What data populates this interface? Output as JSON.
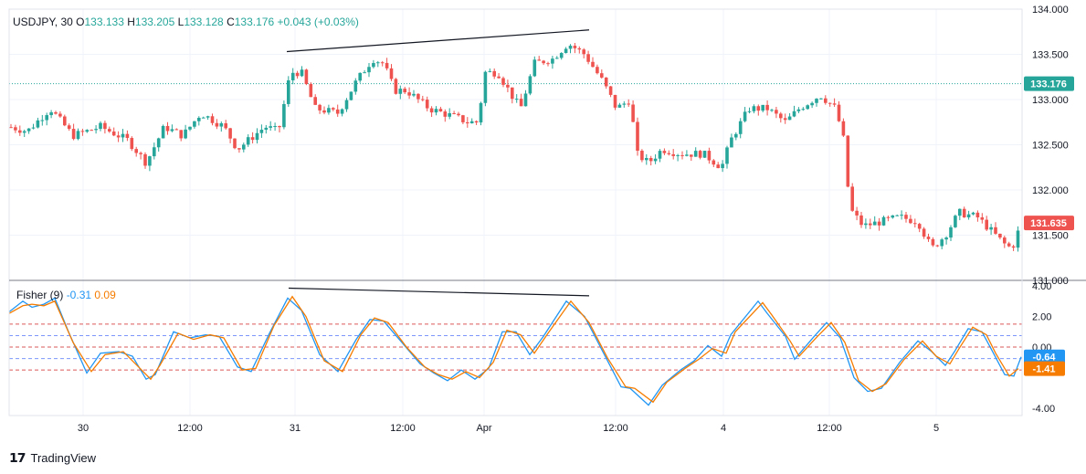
{
  "symbol": "USDJPY, 30",
  "ohlc": {
    "o_label": "O",
    "o": "133.133",
    "h_label": "H",
    "h": "133.205",
    "l_label": "L",
    "l": "133.128",
    "c_label": "C",
    "c": "133.176",
    "change": "+0.043 (+0.03%)"
  },
  "indicator": {
    "name": "Fisher (9)",
    "fisher_value": "-0.31",
    "trigger_value": "0.09"
  },
  "brand": "TradingView",
  "colors": {
    "up": "#26a69a",
    "down": "#ef5350",
    "fisher": "#2196f3",
    "trigger": "#f57c00",
    "level": "#d32f2f",
    "grid": "#f0f3fa"
  },
  "chart_data": [
    {
      "type": "candlestick",
      "ylim": [
        131.0,
        134.0
      ],
      "y_ticks": [
        "134.000",
        "133.500",
        "133.000",
        "132.500",
        "132.000",
        "131.500",
        "131.000"
      ],
      "x_ticks": [
        "30",
        "12:00",
        "31",
        "12:00",
        "Apr",
        "12:00",
        "4",
        "12:00",
        "5"
      ],
      "price_labels": [
        {
          "text": "133.176",
          "value": 133.176,
          "color": "#26a69a"
        },
        {
          "text": "131.635",
          "value": 131.635,
          "color": "#ef5350"
        }
      ],
      "trendline": [
        [
          314,
          133.53
        ],
        [
          645,
          133.77
        ]
      ],
      "anchors": [
        [
          10,
          132.7
        ],
        [
          30,
          132.65
        ],
        [
          55,
          132.9
        ],
        [
          80,
          132.6
        ],
        [
          110,
          132.7
        ],
        [
          140,
          132.55
        ],
        [
          160,
          132.3
        ],
        [
          180,
          132.7
        ],
        [
          200,
          132.6
        ],
        [
          220,
          132.85
        ],
        [
          245,
          132.7
        ],
        [
          260,
          132.45
        ],
        [
          290,
          132.7
        ],
        [
          305,
          132.65
        ],
        [
          318,
          133.3
        ],
        [
          330,
          133.3
        ],
        [
          345,
          132.9
        ],
        [
          370,
          132.85
        ],
        [
          390,
          133.2
        ],
        [
          408,
          133.45
        ],
        [
          420,
          133.4
        ],
        [
          432,
          133.1
        ],
        [
          445,
          133.1
        ],
        [
          470,
          132.9
        ],
        [
          485,
          132.85
        ],
        [
          500,
          132.8
        ],
        [
          512,
          132.75
        ],
        [
          524,
          132.75
        ],
        [
          530,
          133.3
        ],
        [
          545,
          133.3
        ],
        [
          560,
          133.05
        ],
        [
          570,
          132.9
        ],
        [
          585,
          133.4
        ],
        [
          605,
          133.45
        ],
        [
          622,
          133.62
        ],
        [
          640,
          133.5
        ],
        [
          660,
          133.2
        ],
        [
          675,
          132.9
        ],
        [
          690,
          133.0
        ],
        [
          697,
          132.4
        ],
        [
          710,
          132.3
        ],
        [
          725,
          132.45
        ],
        [
          745,
          132.4
        ],
        [
          770,
          132.4
        ],
        [
          790,
          132.25
        ],
        [
          800,
          132.55
        ],
        [
          820,
          132.9
        ],
        [
          840,
          132.9
        ],
        [
          860,
          132.75
        ],
        [
          875,
          132.9
        ],
        [
          898,
          133.05
        ],
        [
          915,
          132.9
        ],
        [
          925,
          132.5
        ],
        [
          930,
          131.8
        ],
        [
          945,
          131.6
        ],
        [
          965,
          131.65
        ],
        [
          985,
          131.7
        ],
        [
          1005,
          131.65
        ],
        [
          1020,
          131.35
        ],
        [
          1035,
          131.5
        ],
        [
          1050,
          131.75
        ],
        [
          1070,
          131.7
        ],
        [
          1085,
          131.55
        ],
        [
          1100,
          131.4
        ],
        [
          1108,
          131.35
        ],
        [
          1118,
          131.63
        ]
      ]
    },
    {
      "type": "line",
      "title": "Fisher (9)",
      "ylim": [
        -4.0,
        4.0
      ],
      "y_ticks": [
        "4.00",
        "2.00",
        "0.00",
        "-4.00"
      ],
      "levels": [
        1.5,
        0.75,
        0,
        -0.75,
        -1.5
      ],
      "value_labels": [
        {
          "text": "-0.64",
          "value": -0.64,
          "color": "#2196f3"
        },
        {
          "text": "-1.41",
          "value": -1.41,
          "color": "#f57c00"
        }
      ],
      "trendline": [
        [
          316,
          3.85
        ],
        [
          645,
          3.35
        ]
      ],
      "series": [
        {
          "color": "#2196f3",
          "points": [
            [
              10,
              2.3
            ],
            [
              25,
              3.0
            ],
            [
              35,
              2.6
            ],
            [
              48,
              2.8
            ],
            [
              60,
              3.2
            ],
            [
              75,
              1.0
            ],
            [
              95,
              -1.7
            ],
            [
              110,
              -0.4
            ],
            [
              130,
              -0.3
            ],
            [
              145,
              -0.6
            ],
            [
              160,
              -2.1
            ],
            [
              170,
              -1.8
            ],
            [
              190,
              1.0
            ],
            [
              208,
              0.6
            ],
            [
              225,
              0.8
            ],
            [
              240,
              0.7
            ],
            [
              260,
              -1.3
            ],
            [
              275,
              -1.6
            ],
            [
              295,
              0.9
            ],
            [
              315,
              3.2
            ],
            [
              330,
              2.4
            ],
            [
              350,
              -0.5
            ],
            [
              370,
              -1.6
            ],
            [
              390,
              0.5
            ],
            [
              405,
              1.8
            ],
            [
              420,
              1.7
            ],
            [
              440,
              0.3
            ],
            [
              460,
              -1.1
            ],
            [
              475,
              -1.7
            ],
            [
              490,
              -2.2
            ],
            [
              505,
              -1.5
            ],
            [
              520,
              -2.1
            ],
            [
              535,
              -1.4
            ],
            [
              550,
              1.0
            ],
            [
              565,
              1.0
            ],
            [
              580,
              -0.5
            ],
            [
              595,
              0.7
            ],
            [
              620,
              3.0
            ],
            [
              640,
              2.0
            ],
            [
              660,
              -0.3
            ],
            [
              680,
              -2.6
            ],
            [
              690,
              -2.7
            ],
            [
              710,
              -3.8
            ],
            [
              725,
              -2.5
            ],
            [
              745,
              -1.5
            ],
            [
              760,
              -0.9
            ],
            [
              775,
              0.1
            ],
            [
              790,
              -0.6
            ],
            [
              800,
              0.8
            ],
            [
              830,
              3.0
            ],
            [
              840,
              2.2
            ],
            [
              860,
              0.7
            ],
            [
              870,
              -0.8
            ],
            [
              890,
              0.6
            ],
            [
              905,
              1.6
            ],
            [
              920,
              0.6
            ],
            [
              935,
              -2.0
            ],
            [
              950,
              -2.9
            ],
            [
              965,
              -2.7
            ],
            [
              985,
              -1.0
            ],
            [
              1005,
              0.4
            ],
            [
              1020,
              -0.3
            ],
            [
              1035,
              -1.2
            ],
            [
              1045,
              -0.3
            ],
            [
              1060,
              1.2
            ],
            [
              1075,
              1.0
            ],
            [
              1085,
              -0.1
            ],
            [
              1100,
              -1.8
            ],
            [
              1110,
              -1.9
            ],
            [
              1118,
              -0.64
            ]
          ]
        },
        {
          "color": "#f57c00",
          "points": [
            [
              10,
              2.2
            ],
            [
              25,
              2.7
            ],
            [
              35,
              2.8
            ],
            [
              48,
              2.7
            ],
            [
              60,
              3.0
            ],
            [
              80,
              0.3
            ],
            [
              100,
              -1.6
            ],
            [
              115,
              -0.5
            ],
            [
              135,
              -0.3
            ],
            [
              150,
              -1.2
            ],
            [
              165,
              -2.1
            ],
            [
              175,
              -1.2
            ],
            [
              195,
              0.9
            ],
            [
              212,
              0.5
            ],
            [
              230,
              0.8
            ],
            [
              245,
              0.6
            ],
            [
              265,
              -1.5
            ],
            [
              280,
              -1.4
            ],
            [
              300,
              1.4
            ],
            [
              320,
              3.3
            ],
            [
              335,
              2.0
            ],
            [
              355,
              -0.9
            ],
            [
              375,
              -1.6
            ],
            [
              395,
              0.8
            ],
            [
              410,
              1.9
            ],
            [
              425,
              1.6
            ],
            [
              445,
              0.0
            ],
            [
              465,
              -1.3
            ],
            [
              480,
              -1.8
            ],
            [
              495,
              -2.1
            ],
            [
              510,
              -1.6
            ],
            [
              525,
              -2.0
            ],
            [
              540,
              -1.0
            ],
            [
              555,
              1.1
            ],
            [
              570,
              0.8
            ],
            [
              585,
              -0.4
            ],
            [
              600,
              0.9
            ],
            [
              625,
              3.0
            ],
            [
              645,
              1.6
            ],
            [
              665,
              -0.7
            ],
            [
              685,
              -2.6
            ],
            [
              695,
              -2.7
            ],
            [
              715,
              -3.6
            ],
            [
              730,
              -2.3
            ],
            [
              750,
              -1.4
            ],
            [
              765,
              -0.8
            ],
            [
              780,
              -0.1
            ],
            [
              795,
              -0.4
            ],
            [
              805,
              1.0
            ],
            [
              835,
              2.9
            ],
            [
              845,
              2.1
            ],
            [
              865,
              0.4
            ],
            [
              875,
              -0.6
            ],
            [
              895,
              0.7
            ],
            [
              910,
              1.6
            ],
            [
              925,
              0.3
            ],
            [
              940,
              -2.2
            ],
            [
              955,
              -2.9
            ],
            [
              970,
              -2.4
            ],
            [
              990,
              -0.8
            ],
            [
              1010,
              0.4
            ],
            [
              1025,
              -0.6
            ],
            [
              1040,
              -1.1
            ],
            [
              1050,
              -0.1
            ],
            [
              1065,
              1.3
            ],
            [
              1080,
              0.8
            ],
            [
              1090,
              -0.4
            ],
            [
              1105,
              -1.9
            ],
            [
              1115,
              -1.41
            ]
          ]
        }
      ]
    }
  ]
}
